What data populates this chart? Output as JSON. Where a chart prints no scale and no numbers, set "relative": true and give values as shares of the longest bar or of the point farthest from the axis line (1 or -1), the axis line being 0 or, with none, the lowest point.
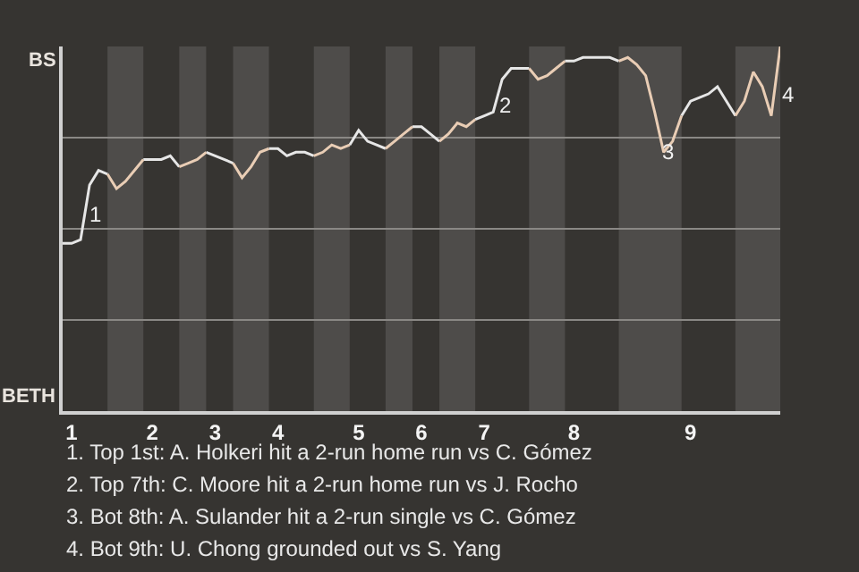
{
  "chart_data": {
    "type": "line",
    "relative": true,
    "categories": [
      null,
      "1",
      null,
      null,
      null,
      null,
      null,
      null,
      null,
      null,
      "2",
      null,
      null,
      null,
      null,
      null,
      null,
      "3",
      null,
      null,
      null,
      null,
      null,
      null,
      "4",
      null,
      null,
      null,
      null,
      null,
      null,
      null,
      null,
      "5",
      null,
      null,
      null,
      null,
      null,
      null,
      "6",
      null,
      null,
      null,
      null,
      null,
      null,
      "7",
      null,
      null,
      null,
      null,
      null,
      null,
      null,
      null,
      null,
      "8",
      null,
      null,
      null,
      null,
      null,
      null,
      null,
      null,
      null,
      null,
      null,
      null,
      "9",
      null,
      null,
      null,
      null,
      null,
      null,
      null,
      null,
      null,
      null
    ],
    "series": [
      {
        "color": "#e6e6e6",
        "values": [
          0.46,
          0.46,
          0.47,
          0.62,
          0.66,
          0.65,
          null,
          null,
          null,
          0.69,
          0.69,
          0.69,
          0.7,
          0.67,
          null,
          null,
          0.71,
          0.7,
          0.69,
          0.68,
          null,
          null,
          null,
          0.72,
          0.72,
          0.7,
          0.71,
          0.71,
          0.7,
          null,
          null,
          null,
          0.73,
          0.77,
          0.74,
          0.73,
          0.72,
          null,
          null,
          0.78,
          0.78,
          0.76,
          0.74,
          null,
          null,
          null,
          0.8,
          0.81,
          0.82,
          0.91,
          0.94,
          0.94,
          0.94,
          null,
          null,
          null,
          0.96,
          0.96,
          0.97,
          0.97,
          0.97,
          0.97,
          0.96,
          null,
          null,
          null,
          null,
          null,
          null,
          0.81,
          0.85,
          0.86,
          0.87,
          0.89,
          0.85,
          0.81,
          null,
          null,
          null,
          null,
          null
        ]
      },
      {
        "color": "#e9cdb5",
        "values": [
          null,
          null,
          null,
          null,
          null,
          0.65,
          0.61,
          0.63,
          0.66,
          0.69,
          null,
          null,
          null,
          0.67,
          0.68,
          0.69,
          0.71,
          null,
          null,
          0.68,
          0.64,
          0.67,
          0.71,
          0.72,
          null,
          null,
          null,
          null,
          0.7,
          0.71,
          0.73,
          0.72,
          0.73,
          null,
          null,
          null,
          0.72,
          0.74,
          0.76,
          0.78,
          null,
          null,
          0.74,
          0.76,
          0.79,
          0.78,
          0.8,
          null,
          null,
          null,
          null,
          null,
          0.94,
          0.91,
          0.92,
          0.94,
          0.96,
          null,
          null,
          null,
          null,
          null,
          0.96,
          0.97,
          0.95,
          0.92,
          0.82,
          0.71,
          0.74,
          0.81,
          null,
          null,
          null,
          null,
          null,
          0.81,
          0.85,
          0.93,
          0.89,
          0.81,
          1.0
        ]
      }
    ],
    "grid": "y",
    "marker": "none",
    "line_style": "solid",
    "annotations": [
      "BS",
      "BETH",
      "1",
      "2",
      "3",
      "4",
      "1. Top 1st: A. Holkeri hit a 2-run home run vs C. Gómez",
      "2. Top 7th: C. Moore hit a 2-run home run vs J. Rocho",
      "3. Bot 8th: A. Sulander hit a 2-run single vs C. Gómez",
      "4. Bot 9th: U. Chong grounded out vs S. Yang"
    ]
  }
}
